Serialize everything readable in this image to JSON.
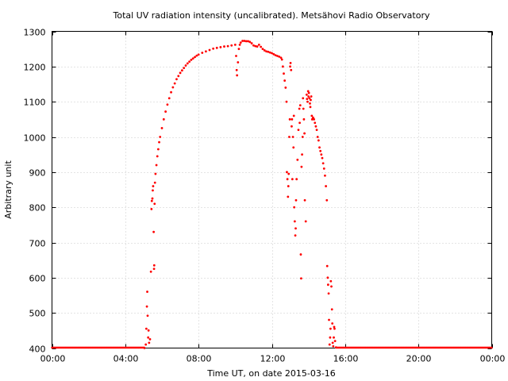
{
  "chart_data": {
    "type": "scatter",
    "title": "Total UV radiation intensity (uncalibrated). Metsähovi Radio Observatory",
    "xlabel": "Time UT, on date 2015-03-16",
    "ylabel": "Arbitrary unit",
    "xlim": [
      0,
      24
    ],
    "ylim": [
      400,
      1300
    ],
    "x_ticks": [
      {
        "v": 0,
        "label": "00:00"
      },
      {
        "v": 4,
        "label": "04:00"
      },
      {
        "v": 8,
        "label": "08:00"
      },
      {
        "v": 12,
        "label": "12:00"
      },
      {
        "v": 16,
        "label": "16:00"
      },
      {
        "v": 20,
        "label": "20:00"
      },
      {
        "v": 24,
        "label": "00:00"
      }
    ],
    "y_ticks": [
      400,
      500,
      600,
      700,
      800,
      900,
      1000,
      1100,
      1200,
      1300
    ],
    "grid": true,
    "marker_color": "#ff0000",
    "series": [
      {
        "values": [
          [
            5.05,
            400
          ],
          [
            5.12,
            410
          ],
          [
            5.15,
            455
          ],
          [
            5.18,
            518
          ],
          [
            5.2,
            560
          ],
          [
            5.22,
            492
          ],
          [
            5.25,
            430
          ],
          [
            5.27,
            450
          ],
          [
            5.3,
            415
          ],
          [
            5.35,
            425
          ],
          [
            5.4,
            617
          ],
          [
            5.43,
            795
          ],
          [
            5.45,
            818
          ],
          [
            5.48,
            825
          ],
          [
            5.5,
            848
          ],
          [
            5.52,
            860
          ],
          [
            5.55,
            730
          ],
          [
            5.57,
            625
          ],
          [
            5.58,
            635
          ],
          [
            5.6,
            810
          ],
          [
            5.62,
            870
          ],
          [
            5.65,
            895
          ],
          [
            5.7,
            920
          ],
          [
            5.75,
            945
          ],
          [
            5.8,
            965
          ],
          [
            5.85,
            985
          ],
          [
            5.9,
            1000
          ],
          [
            6.0,
            1025
          ],
          [
            6.1,
            1050
          ],
          [
            6.2,
            1072
          ],
          [
            6.3,
            1092
          ],
          [
            6.4,
            1110
          ],
          [
            6.5,
            1127
          ],
          [
            6.6,
            1141
          ],
          [
            6.7,
            1152
          ],
          [
            6.8,
            1164
          ],
          [
            6.9,
            1173
          ],
          [
            7.0,
            1182
          ],
          [
            7.1,
            1189
          ],
          [
            7.2,
            1196
          ],
          [
            7.3,
            1203
          ],
          [
            7.4,
            1209
          ],
          [
            7.5,
            1214
          ],
          [
            7.6,
            1219
          ],
          [
            7.7,
            1223
          ],
          [
            7.8,
            1227
          ],
          [
            7.9,
            1231
          ],
          [
            8.0,
            1234
          ],
          [
            8.2,
            1239
          ],
          [
            8.4,
            1243
          ],
          [
            8.6,
            1247
          ],
          [
            8.8,
            1251
          ],
          [
            9.0,
            1253
          ],
          [
            9.2,
            1255
          ],
          [
            9.4,
            1257
          ],
          [
            9.6,
            1258
          ],
          [
            9.8,
            1260
          ],
          [
            10.0,
            1262
          ],
          [
            10.05,
            1230
          ],
          [
            10.08,
            1190
          ],
          [
            10.1,
            1175
          ],
          [
            10.15,
            1212
          ],
          [
            10.2,
            1250
          ],
          [
            10.25,
            1262
          ],
          [
            10.3,
            1268
          ],
          [
            10.4,
            1273
          ],
          [
            10.5,
            1273
          ],
          [
            10.6,
            1272
          ],
          [
            10.7,
            1272
          ],
          [
            10.8,
            1270
          ],
          [
            10.9,
            1266
          ],
          [
            11.0,
            1260
          ],
          [
            11.1,
            1258
          ],
          [
            11.2,
            1257
          ],
          [
            11.3,
            1262
          ],
          [
            11.4,
            1256
          ],
          [
            11.5,
            1250
          ],
          [
            11.6,
            1246
          ],
          [
            11.7,
            1243
          ],
          [
            11.8,
            1242
          ],
          [
            11.9,
            1240
          ],
          [
            12.0,
            1238
          ],
          [
            12.1,
            1235
          ],
          [
            12.2,
            1232
          ],
          [
            12.3,
            1230
          ],
          [
            12.4,
            1228
          ],
          [
            12.5,
            1225
          ],
          [
            12.55,
            1220
          ],
          [
            12.6,
            1200
          ],
          [
            12.65,
            1180
          ],
          [
            12.7,
            1160
          ],
          [
            12.75,
            1140
          ],
          [
            12.8,
            1100
          ],
          [
            12.82,
            900
          ],
          [
            12.85,
            880
          ],
          [
            12.88,
            830
          ],
          [
            12.9,
            860
          ],
          [
            12.92,
            895
          ],
          [
            12.95,
            1000
          ],
          [
            12.98,
            1050
          ],
          [
            13.0,
            1200
          ],
          [
            13.02,
            1210
          ],
          [
            13.05,
            1190
          ],
          [
            13.08,
            1030
          ],
          [
            13.1,
            1050
          ],
          [
            13.12,
            880
          ],
          [
            13.15,
            1000
          ],
          [
            13.18,
            970
          ],
          [
            13.2,
            1060
          ],
          [
            13.22,
            800
          ],
          [
            13.25,
            760
          ],
          [
            13.28,
            720
          ],
          [
            13.3,
            740
          ],
          [
            13.32,
            820
          ],
          [
            13.35,
            880
          ],
          [
            13.4,
            935
          ],
          [
            13.45,
            1020
          ],
          [
            13.5,
            1080
          ],
          [
            13.52,
            1040
          ],
          [
            13.55,
            1090
          ],
          [
            13.58,
            666
          ],
          [
            13.6,
            598
          ],
          [
            13.62,
            915
          ],
          [
            13.65,
            950
          ],
          [
            13.68,
            1000
          ],
          [
            13.7,
            1110
          ],
          [
            13.72,
            1080
          ],
          [
            13.75,
            1050
          ],
          [
            13.78,
            1010
          ],
          [
            13.8,
            820
          ],
          [
            13.85,
            760
          ],
          [
            13.9,
            1120
          ],
          [
            13.92,
            1108
          ],
          [
            13.95,
            1100
          ],
          [
            13.98,
            1130
          ],
          [
            14.0,
            1115
          ],
          [
            14.02,
            1125
          ],
          [
            14.05,
            1110
          ],
          [
            14.08,
            1095
          ],
          [
            14.1,
            1085
          ],
          [
            14.12,
            1105
          ],
          [
            14.15,
            1115
          ],
          [
            14.18,
            1060
          ],
          [
            14.2,
            1050
          ],
          [
            14.25,
            1055
          ],
          [
            14.3,
            1050
          ],
          [
            14.35,
            1040
          ],
          [
            14.4,
            1030
          ],
          [
            14.45,
            1020
          ],
          [
            14.5,
            1000
          ],
          [
            14.55,
            990
          ],
          [
            14.6,
            970
          ],
          [
            14.65,
            960
          ],
          [
            14.7,
            950
          ],
          [
            14.75,
            940
          ],
          [
            14.8,
            925
          ],
          [
            14.85,
            910
          ],
          [
            14.9,
            890
          ],
          [
            14.95,
            860
          ],
          [
            15.0,
            820
          ],
          [
            15.02,
            633
          ],
          [
            15.05,
            600
          ],
          [
            15.07,
            580
          ],
          [
            15.1,
            555
          ],
          [
            15.12,
            480
          ],
          [
            15.15,
            410
          ],
          [
            15.18,
            430
          ],
          [
            15.2,
            455
          ],
          [
            15.22,
            590
          ],
          [
            15.25,
            575
          ],
          [
            15.28,
            510
          ],
          [
            15.3,
            470
          ],
          [
            15.32,
            415
          ],
          [
            15.35,
            405
          ],
          [
            15.38,
            430
          ],
          [
            15.4,
            460
          ],
          [
            15.42,
            455
          ],
          [
            15.45,
            420
          ],
          [
            15.5,
            402
          ]
        ]
      }
    ]
  }
}
